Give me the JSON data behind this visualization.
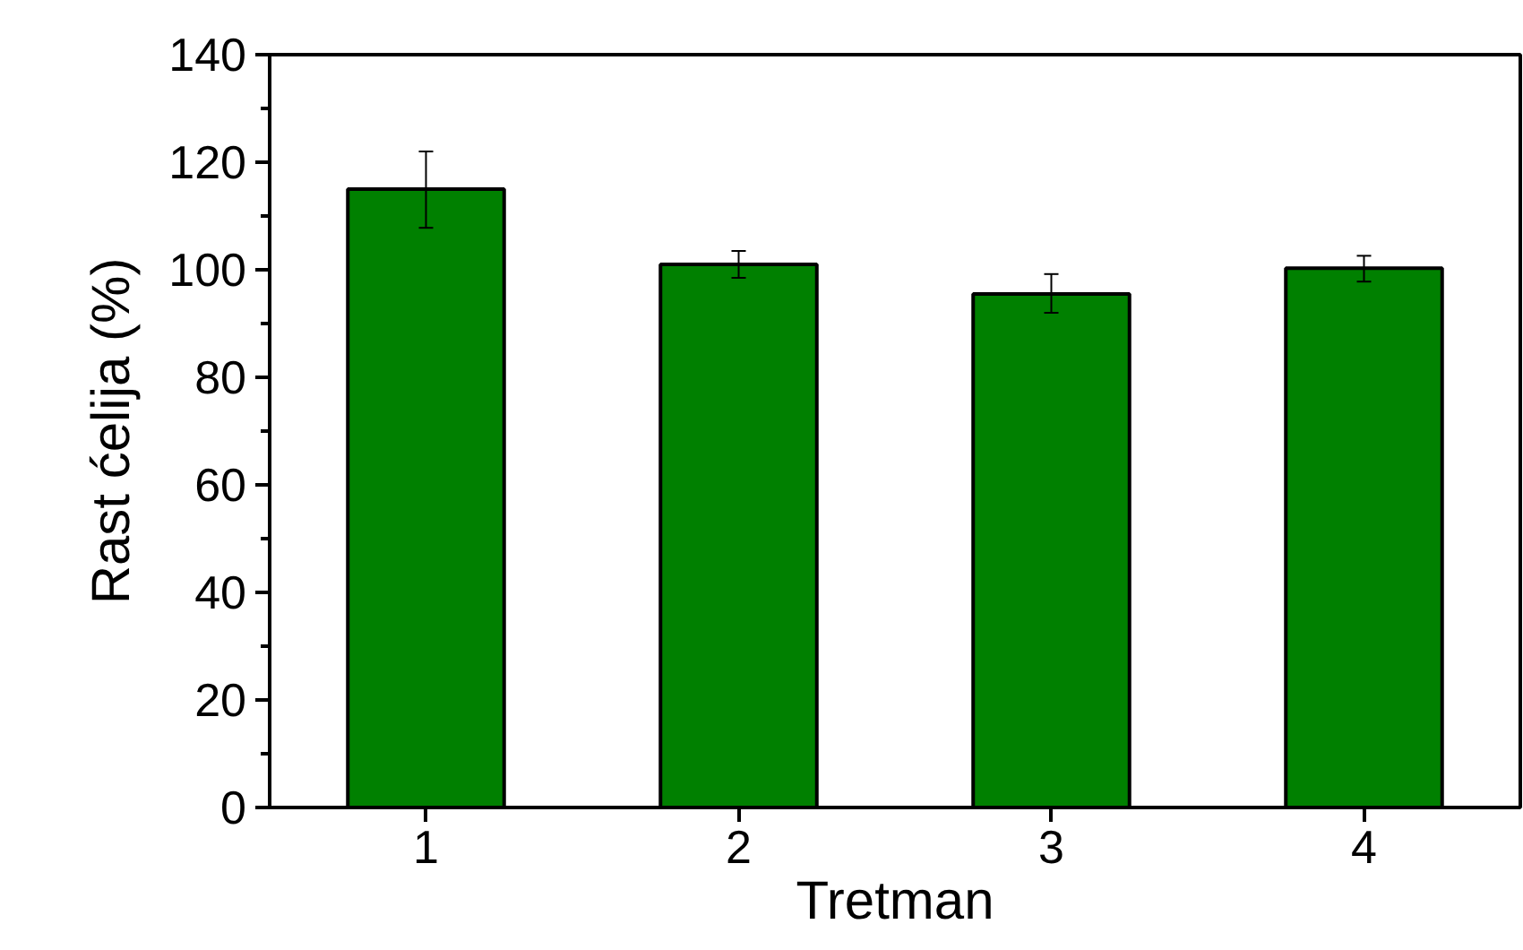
{
  "chart_data": {
    "type": "bar",
    "xlabel": "Tretman",
    "ylabel": "Rast ćelija (%)",
    "categories": [
      "1",
      "2",
      "3",
      "4"
    ],
    "values": [
      115,
      101,
      95.5,
      100.3
    ],
    "errors": [
      [
        107.8,
        122
      ],
      [
        98.5,
        103.5
      ],
      [
        92,
        99.2
      ],
      [
        97.8,
        102.6
      ]
    ],
    "color": "#008000",
    "ylim": [
      0,
      140
    ],
    "yticks": [
      0,
      20,
      40,
      60,
      80,
      100,
      120,
      140
    ],
    "grid": false
  }
}
